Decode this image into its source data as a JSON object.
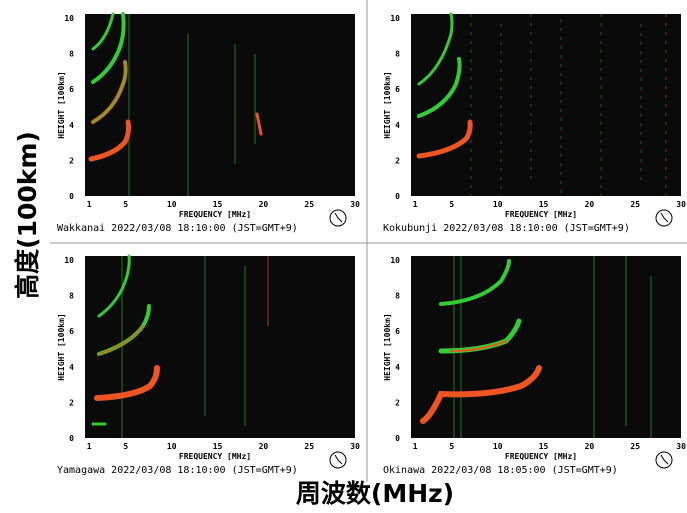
{
  "y_axis_title": "高度(100km)",
  "x_axis_title": "周波数(MHz)",
  "panels": [
    {
      "station_caption": "Wakkanai 2022/03/08 18:10:00 (JST=GMT+9)",
      "x_label": "FREQUENCY [MHz]",
      "y_label": "HEIGHT [100km]",
      "xticks": [
        1,
        5,
        10,
        15,
        20,
        25,
        30
      ],
      "yticks": [
        0,
        2,
        4,
        6,
        8,
        10
      ]
    },
    {
      "station_caption": "Kokubunji 2022/03/08 18:10:00 (JST=GMT+9)",
      "x_label": "FREQUENCY [MHz]",
      "y_label": "HEIGHT [100km]",
      "xticks": [
        1,
        5,
        10,
        15,
        20,
        25,
        30
      ],
      "yticks": [
        0,
        2,
        4,
        6,
        8,
        10
      ]
    },
    {
      "station_caption": "Yamagawa 2022/03/08 18:10:00 (JST=GMT+9)",
      "x_label": "FREQUENCY [MHz]",
      "y_label": "HEIGHT [100km]",
      "xticks": [
        1,
        5,
        10,
        15,
        20,
        25,
        30
      ],
      "yticks": [
        0,
        2,
        4,
        6,
        8,
        10
      ]
    },
    {
      "station_caption": "Okinawa 2022/03/08 18:05:00 (JST=GMT+9)",
      "x_label": "FREQUENCY [MHz]",
      "y_label": "HEIGHT [100km]",
      "xticks": [
        1,
        5,
        10,
        15,
        20,
        25,
        30
      ],
      "yticks": [
        0,
        2,
        4,
        6,
        8,
        10
      ]
    }
  ]
}
